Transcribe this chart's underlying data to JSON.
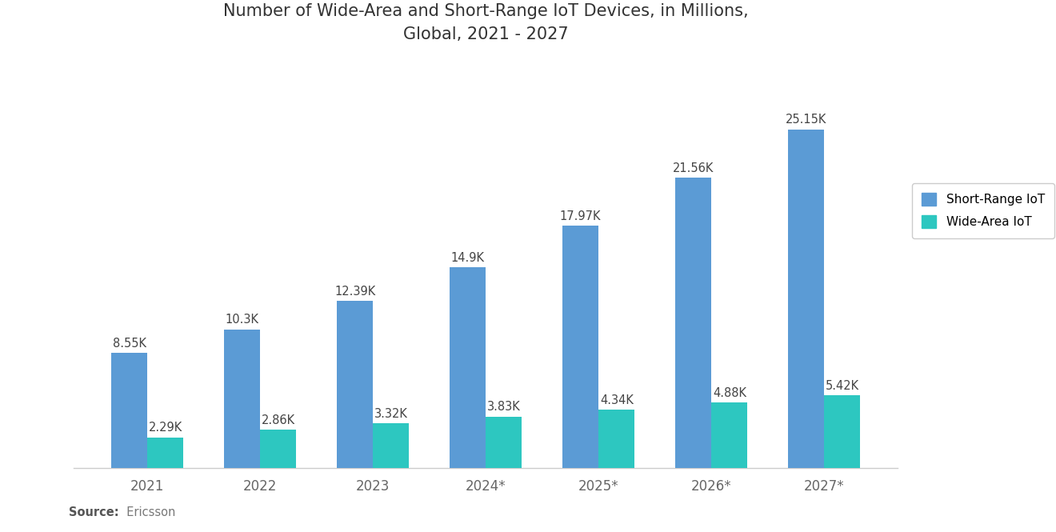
{
  "title": "Number of Wide-Area and Short-Range IoT Devices, in Millions,\nGlobal, 2021 - 2027",
  "categories": [
    "2021",
    "2022",
    "2023",
    "2024*",
    "2025*",
    "2026*",
    "2027*"
  ],
  "short_range": [
    8.55,
    10.3,
    12.39,
    14.9,
    17.97,
    21.56,
    25.15
  ],
  "wide_area": [
    2.29,
    2.86,
    3.32,
    3.83,
    4.34,
    4.88,
    5.42
  ],
  "short_range_labels": [
    "8.55K",
    "10.3K",
    "12.39K",
    "14.9K",
    "17.97K",
    "21.56K",
    "25.15K"
  ],
  "wide_area_labels": [
    "2.29K",
    "2.86K",
    "3.32K",
    "3.83K",
    "4.34K",
    "4.88K",
    "5.42K"
  ],
  "short_range_color": "#5b9bd5",
  "wide_area_color": "#2dc7c0",
  "background_color": "#ffffff",
  "title_fontsize": 15,
  "legend_labels": [
    "Short-Range IoT",
    "Wide-Area IoT"
  ],
  "source_bold": "Source:",
  "source_normal": "  Ericsson",
  "bar_width": 0.32,
  "ylim": [
    0,
    30
  ]
}
